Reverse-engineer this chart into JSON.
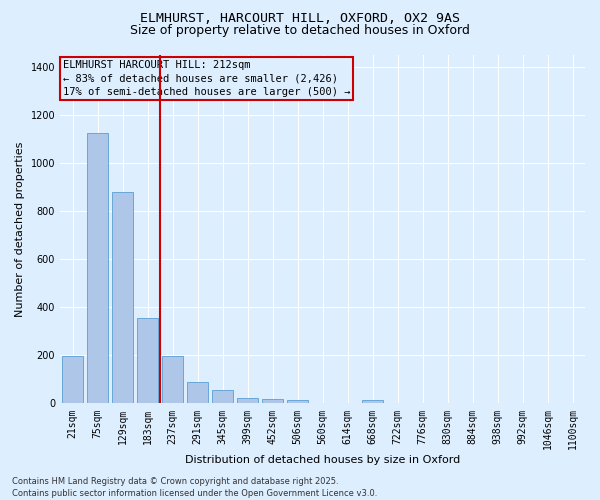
{
  "title_line1": "ELMHURST, HARCOURT HILL, OXFORD, OX2 9AS",
  "title_line2": "Size of property relative to detached houses in Oxford",
  "xlabel": "Distribution of detached houses by size in Oxford",
  "ylabel": "Number of detached properties",
  "bar_color": "#aec6e8",
  "bar_edge_color": "#5a9fd4",
  "background_color": "#ddeeff",
  "grid_color": "#ffffff",
  "vline_color": "#cc0000",
  "categories": [
    "21sqm",
    "75sqm",
    "129sqm",
    "183sqm",
    "237sqm",
    "291sqm",
    "345sqm",
    "399sqm",
    "452sqm",
    "506sqm",
    "560sqm",
    "614sqm",
    "668sqm",
    "722sqm",
    "776sqm",
    "830sqm",
    "884sqm",
    "938sqm",
    "992sqm",
    "1046sqm",
    "1100sqm"
  ],
  "values": [
    197,
    1125,
    880,
    355,
    197,
    90,
    57,
    22,
    20,
    15,
    0,
    0,
    15,
    0,
    0,
    0,
    0,
    0,
    0,
    0,
    0
  ],
  "annotation_title": "ELMHURST HARCOURT HILL: 212sqm",
  "annotation_line2": "← 83% of detached houses are smaller (2,426)",
  "annotation_line3": "17% of semi-detached houses are larger (500) →",
  "annotation_box_color": "#cc0000",
  "footer_line1": "Contains HM Land Registry data © Crown copyright and database right 2025.",
  "footer_line2": "Contains public sector information licensed under the Open Government Licence v3.0.",
  "ylim": [
    0,
    1450
  ],
  "yticks": [
    0,
    200,
    400,
    600,
    800,
    1000,
    1200,
    1400
  ],
  "title_fontsize": 9.5,
  "subtitle_fontsize": 9,
  "tick_fontsize": 7,
  "ylabel_fontsize": 8,
  "xlabel_fontsize": 8,
  "footer_fontsize": 6,
  "ann_fontsize": 7.5
}
